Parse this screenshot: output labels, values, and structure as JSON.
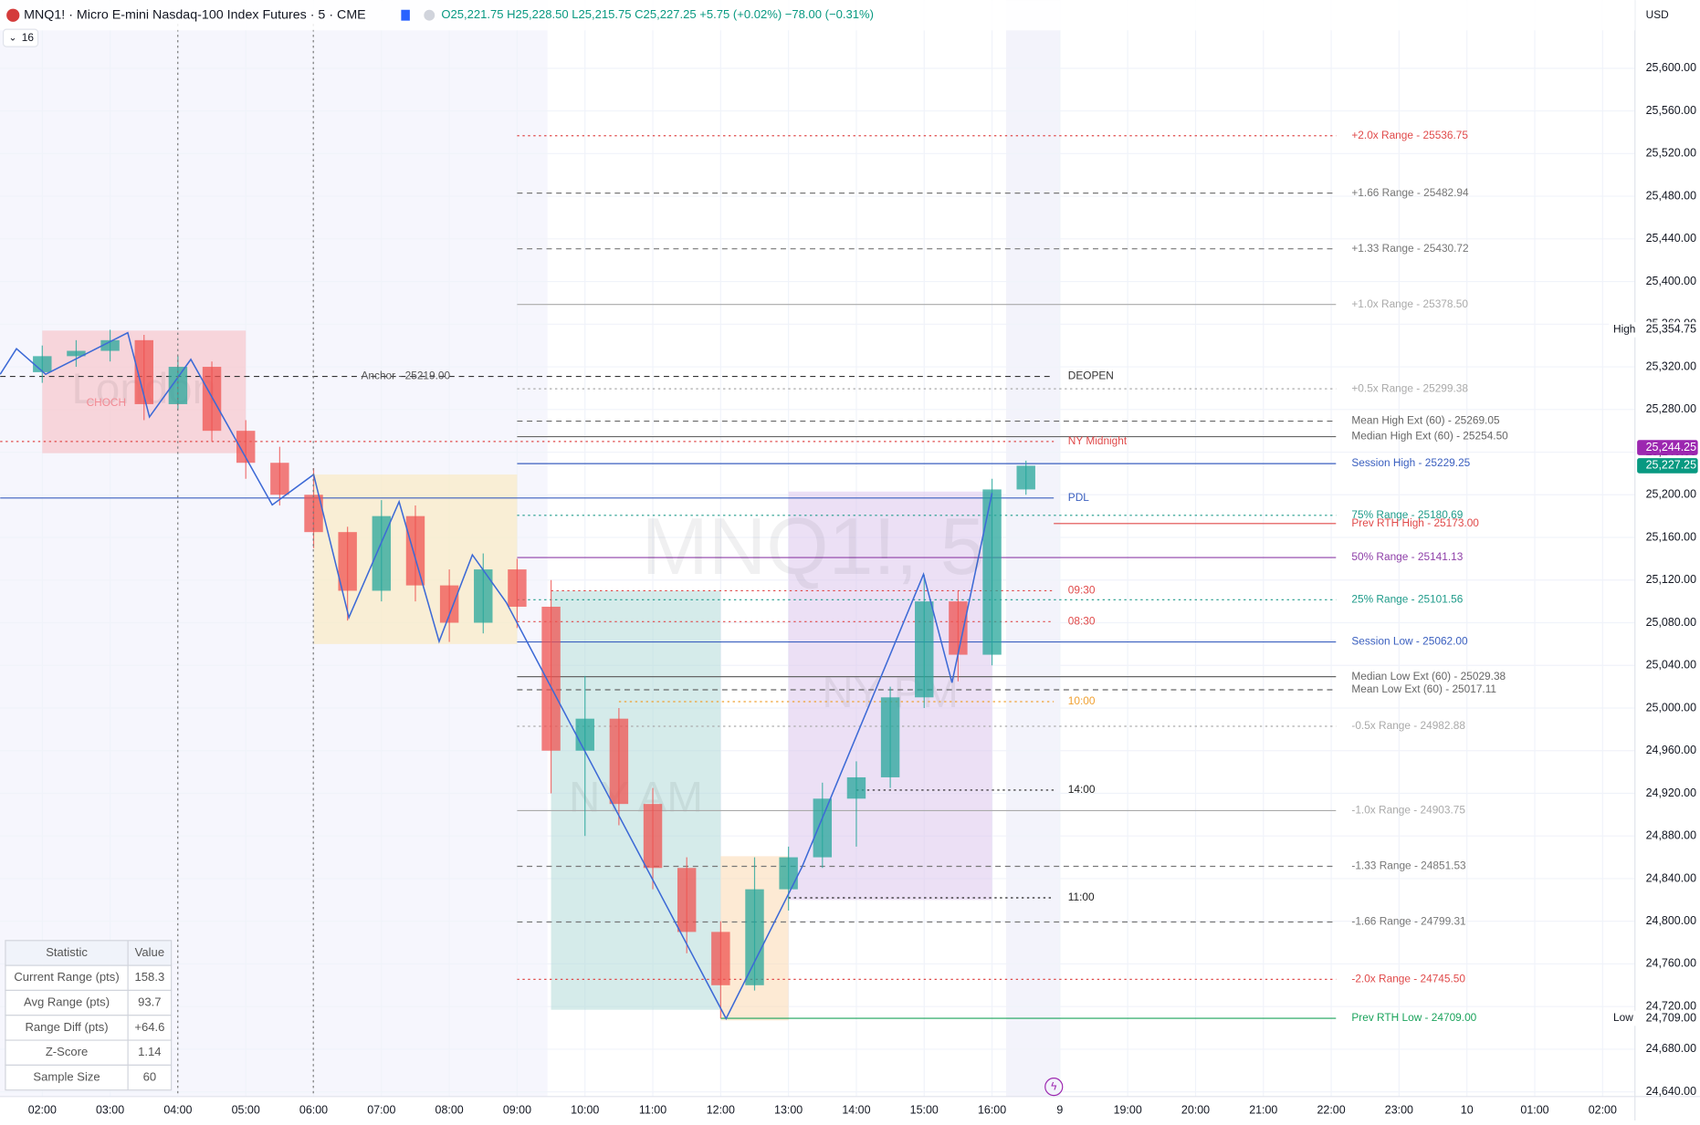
{
  "header": {
    "symbol": "MNQ1! · Micro E-mini Nasdaq-100 Index Futures · 5 · CME",
    "ohlc": "O25,221.75 H25,228.50 L25,215.75 C25,227.25 +5.75 (+0.02%) −78.00 (−0.31%)",
    "currency": "USD",
    "badge": "16"
  },
  "watermark": "MNQ1!, 5",
  "price_axis": {
    "ylim": [
      24635.6,
      25664.0
    ],
    "yticks": [
      {
        "value": 25600,
        "label": "25,600.00"
      },
      {
        "value": 25560,
        "label": "25,560.00"
      },
      {
        "value": 25520,
        "label": "25,520.00"
      },
      {
        "value": 25480,
        "label": "25,480.00"
      },
      {
        "value": 25440,
        "label": "25,440.00"
      },
      {
        "value": 25400,
        "label": "25,400.00"
      },
      {
        "value": 25360,
        "label": "25,360.00"
      },
      {
        "value": 25320,
        "label": "25,320.00"
      },
      {
        "value": 25280,
        "label": "25,280.00"
      },
      {
        "value": 25240,
        "label": "25,240.00"
      },
      {
        "value": 25200,
        "label": "25,200.00"
      },
      {
        "value": 25160,
        "label": "25,160.00"
      },
      {
        "value": 25120,
        "label": "25,120.00"
      },
      {
        "value": 25080,
        "label": "25,080.00"
      },
      {
        "value": 25040,
        "label": "25,040.00"
      },
      {
        "value": 25000,
        "label": "25,000.00"
      },
      {
        "value": 24960,
        "label": "24,960.00"
      },
      {
        "value": 24920,
        "label": "24,920.00"
      },
      {
        "value": 24880,
        "label": "24,880.00"
      },
      {
        "value": 24840,
        "label": "24,840.00"
      },
      {
        "value": 24800,
        "label": "24,800.00"
      },
      {
        "value": 24760,
        "label": "24,760.00"
      },
      {
        "value": 24720,
        "label": "24,720.00"
      },
      {
        "value": 24680,
        "label": "24,680.00"
      },
      {
        "value": 24640,
        "label": "24,640.00"
      }
    ]
  },
  "time_axis": {
    "xlim": [
      -0.623,
      23.477
    ],
    "xticks": [
      {
        "value": 0,
        "label": "02:00"
      },
      {
        "value": 1,
        "label": "03:00"
      },
      {
        "value": 2,
        "label": "04:00"
      },
      {
        "value": 3,
        "label": "05:00"
      },
      {
        "value": 4,
        "label": "06:00"
      },
      {
        "value": 5,
        "label": "07:00"
      },
      {
        "value": 6,
        "label": "08:00"
      },
      {
        "value": 7,
        "label": "09:00"
      },
      {
        "value": 8,
        "label": "10:00"
      },
      {
        "value": 9,
        "label": "11:00"
      },
      {
        "value": 10,
        "label": "12:00"
      },
      {
        "value": 11,
        "label": "13:00"
      },
      {
        "value": 12,
        "label": "14:00"
      },
      {
        "value": 13,
        "label": "15:00"
      },
      {
        "value": 14,
        "label": "16:00"
      },
      {
        "value": 15,
        "label": "9"
      },
      {
        "value": 16,
        "label": "19:00"
      },
      {
        "value": 17,
        "label": "20:00"
      },
      {
        "value": 18,
        "label": "21:00"
      },
      {
        "value": 19,
        "label": "22:00"
      },
      {
        "value": 20,
        "label": "23:00"
      },
      {
        "value": 21,
        "label": "10"
      },
      {
        "value": 22,
        "label": "01:00"
      },
      {
        "value": 23,
        "label": "02:00"
      }
    ]
  },
  "candles": {
    "x": [
      0,
      0.5,
      1,
      1.5,
      2,
      2.5,
      3,
      3.5,
      4,
      4.5,
      5,
      5.5,
      6,
      6.5,
      7,
      7.5,
      8,
      8.5,
      9,
      9.5,
      10,
      10.5,
      11,
      11.5,
      12,
      12.5,
      13,
      13.5,
      14,
      14.5
    ],
    "open": [
      25315,
      25330,
      25335,
      25345,
      25285,
      25320,
      25260,
      25230,
      25200,
      25165,
      25110,
      25180,
      25115,
      25080,
      25130,
      25095,
      24960,
      24990,
      24910,
      24850,
      24790,
      24740,
      24830,
      24860,
      24915,
      24935,
      25010,
      25100,
      25050,
      25205
    ],
    "high": [
      25340,
      25345,
      25354.75,
      25350,
      25330,
      25325,
      25270,
      25245,
      25225,
      25170,
      25195,
      25190,
      25130,
      25145,
      25140,
      25120,
      25030,
      25000,
      24925,
      24860,
      24800,
      24860,
      24870,
      24930,
      24950,
      25020,
      25125,
      25110,
      25215,
      25232
    ],
    "low": [
      25305,
      25320,
      25325,
      25270,
      25280,
      25250,
      25215,
      25190,
      25150,
      25082,
      25100,
      25100,
      25062,
      25070,
      25075,
      24920,
      24880,
      24890,
      24830,
      24770,
      24709,
      24735,
      24810,
      24850,
      24870,
      24925,
      25000,
      25025,
      25040,
      25200
    ],
    "close": [
      25330,
      25335,
      25345,
      25285,
      25320,
      25260,
      25230,
      25200,
      25165,
      25110,
      25180,
      25115,
      25080,
      25130,
      25095,
      24960,
      24990,
      24910,
      24850,
      24790,
      24740,
      24830,
      24860,
      24915,
      24935,
      25010,
      25100,
      25050,
      25205,
      25227.25
    ]
  },
  "zigzag": {
    "x": [
      -0.62,
      -0.38,
      0.05,
      1.26,
      1.58,
      2.19,
      3.39,
      4.0,
      4.52,
      5.26,
      5.85,
      6.34,
      6.84,
      10.08,
      11.2,
      12.99,
      13.41,
      14.0
    ],
    "y": [
      25313,
      25337,
      25313,
      25352,
      25273,
      25327,
      25190.5,
      25219,
      25085,
      25193.5,
      25062.4,
      25143.7,
      25099,
      24708.7,
      24851,
      25125.4,
      25023.8,
      25201.6
    ]
  },
  "boxes": [
    {
      "label": "London",
      "x": [
        0,
        3
      ],
      "y": [
        25239,
        25354
      ],
      "color": "#f7b9c0"
    },
    {
      "label": "",
      "x": [
        4,
        7
      ],
      "y": [
        25060,
        25219
      ],
      "color": "#fbe7b5"
    },
    {
      "label": "NY AM",
      "x": [
        7.5,
        10
      ],
      "y": [
        24717,
        25110
      ],
      "color": "#b2dbd8"
    },
    {
      "label": "",
      "x": [
        10,
        11
      ],
      "y": [
        24707,
        24861
      ],
      "color": "#fbd9b0"
    },
    {
      "label": "NY PM",
      "x": [
        11,
        14
      ],
      "y": [
        24820,
        25203
      ],
      "color": "#dcc6ec"
    }
  ],
  "annotations": [
    {
      "text": "CHOCH",
      "x": 0.65,
      "y": 25286,
      "color": "#f28b94"
    },
    {
      "text": "Anchor - 25219.00",
      "x": 4.7,
      "y": 25311,
      "color": "#555"
    }
  ],
  "levels": [
    {
      "label": "+2.0x Range - 25536.75",
      "value": 25536.75,
      "color": "#e04a4a",
      "style": "dotted",
      "x0": 7
    },
    {
      "label": "+1.66 Range - 25482.94",
      "value": 25482.94,
      "color": "#777",
      "style": "dashed",
      "x0": 7
    },
    {
      "label": "+1.33 Range - 25430.72",
      "value": 25430.72,
      "color": "#777",
      "style": "dashed",
      "x0": 7
    },
    {
      "label": "+1.0x Range - 25378.50",
      "value": 25378.5,
      "color": "#aaa",
      "style": "solid",
      "x0": 7
    },
    {
      "label": "+0.5x Range - 25299.38",
      "value": 25299.38,
      "color": "#aaa",
      "style": "dotted",
      "x0": 7
    },
    {
      "label": "Mean High Ext (60) - 25269.05",
      "value": 25269.05,
      "color": "#666",
      "style": "dashed",
      "x0": 7
    },
    {
      "label": "Median High Ext (60) - 25254.50",
      "value": 25254.5,
      "color": "#666",
      "style": "solid",
      "x0": 7
    },
    {
      "label": "Session High - 25229.25",
      "value": 25229.25,
      "color": "#3a5fbf",
      "style": "solid",
      "x0": 7
    },
    {
      "label": "75% Range - 25180.69",
      "value": 25180.69,
      "color": "#1e9b8a",
      "style": "dotted",
      "x0": 7
    },
    {
      "label": "Prev RTH High - 25173.00",
      "value": 25173.0,
      "color": "#e04a4a",
      "style": "solid",
      "x0": 14.91
    },
    {
      "label": "50% Range - 25141.13",
      "value": 25141.13,
      "color": "#8e3fa8",
      "style": "solid",
      "x0": 7
    },
    {
      "label": "25% Range - 25101.56",
      "value": 25101.56,
      "color": "#1e9b8a",
      "style": "dotted",
      "x0": 7
    },
    {
      "label": "Session Low - 25062.00",
      "value": 25062.0,
      "color": "#3a5fbf",
      "style": "solid",
      "x0": 7
    },
    {
      "label": "Median Low Ext (60) - 25029.38",
      "value": 25029.38,
      "color": "#666",
      "style": "solid",
      "x0": 7
    },
    {
      "label": "Mean Low Ext (60) - 25017.11",
      "value": 25017.11,
      "color": "#666",
      "style": "dashed",
      "x0": 7
    },
    {
      "label": "-0.5x Range - 24982.88",
      "value": 24982.88,
      "color": "#aaa",
      "style": "dotted",
      "x0": 7
    },
    {
      "label": "-1.0x Range - 24903.75",
      "value": 24903.75,
      "color": "#aaa",
      "style": "solid",
      "x0": 7
    },
    {
      "label": "-1.33 Range - 24851.53",
      "value": 24851.53,
      "color": "#777",
      "style": "dashed",
      "x0": 7
    },
    {
      "label": "-1.66 Range - 24799.31",
      "value": 24799.31,
      "color": "#777",
      "style": "dashed",
      "x0": 7
    },
    {
      "label": "-2.0x Range - 24745.50",
      "value": 24745.5,
      "color": "#e04a4a",
      "style": "dotted",
      "x0": 7
    },
    {
      "label": "Prev RTH Low - 24709.00",
      "value": 24709.0,
      "color": "#1aa35b",
      "style": "solid",
      "x0": 10
    }
  ],
  "short_levels": [
    {
      "label": "DEOPEN",
      "value": 25311,
      "color": "#333",
      "style": "dashed",
      "x0": -0.62
    },
    {
      "label": "NY Midnight",
      "value": 25250,
      "color": "#e04a4a",
      "style": "dotted",
      "x0": -0.62
    },
    {
      "label": "PDL",
      "value": 25197,
      "color": "#3a5fbf",
      "style": "solid",
      "x0": -0.62
    },
    {
      "label": "09:30",
      "value": 25110,
      "color": "#e04a4a",
      "style": "dotted",
      "x0": 7.5
    },
    {
      "label": "08:30",
      "value": 25081,
      "color": "#e04a4a",
      "style": "dotted",
      "x0": 7
    },
    {
      "label": "10:00",
      "value": 25006,
      "color": "#f0a030",
      "style": "dotted",
      "x0": 8.5
    },
    {
      "label": "14:00",
      "value": 24923,
      "color": "#222",
      "style": "dotted",
      "x0": 12
    },
    {
      "label": "11:00",
      "value": 24822,
      "color": "#222",
      "style": "dotted",
      "x0": 11
    }
  ],
  "price_badges": [
    {
      "label": "High",
      "value": 25354.75,
      "text": "25,354.75",
      "color": "#ffffff",
      "textcolor": "#131722"
    },
    {
      "label": "",
      "value": 25244.25,
      "text": "25,244.25",
      "color": "#9c27b0",
      "textcolor": "#ffffff"
    },
    {
      "label": "",
      "value": 25227.25,
      "text": "25,227.25",
      "color": "#089981",
      "textcolor": "#ffffff"
    },
    {
      "label": "Low",
      "value": 24709.0,
      "text": "24,709.00",
      "color": "#ffffff",
      "textcolor": "#131722"
    }
  ],
  "stats": {
    "header": [
      "Statistic",
      "Value"
    ],
    "rows": [
      [
        "Current Range (pts)",
        158.3
      ],
      [
        "Avg Range (pts)",
        93.7
      ],
      [
        "Range Diff (pts)",
        "+64.6"
      ],
      [
        "Z-Score",
        1.14
      ],
      [
        "Sample Size",
        60
      ]
    ]
  }
}
